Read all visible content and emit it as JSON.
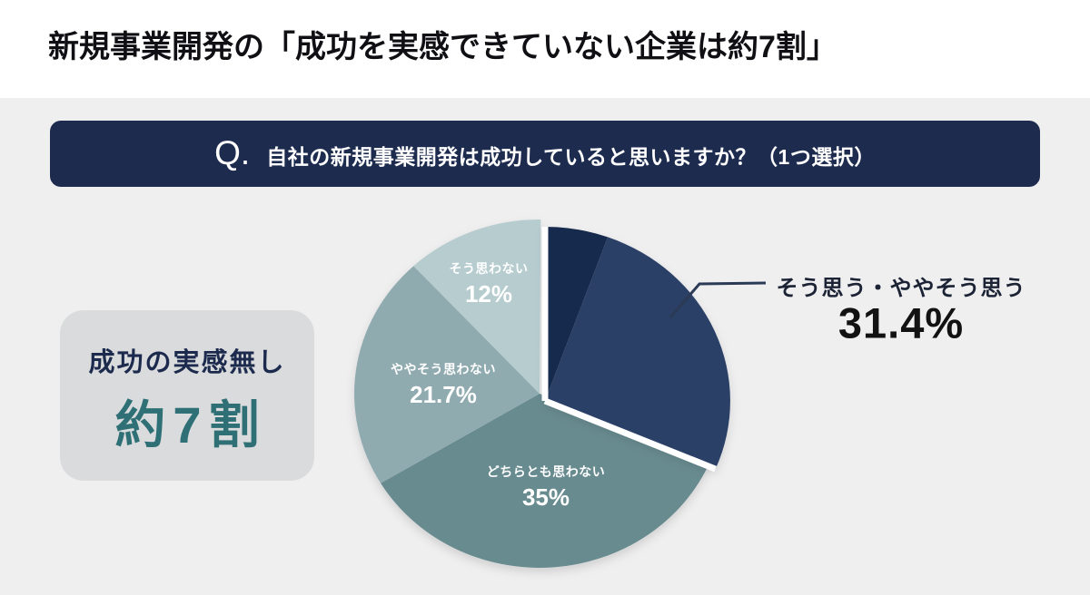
{
  "page": {
    "background": "#ffffff",
    "panel_background": "#efeff0"
  },
  "title": "新規事業開発の「成功を実感できていない企業は約7割」",
  "question": {
    "q_label": "Q.",
    "text": "自社の新規事業開発は成功していると思いますか？（1つ選択）",
    "background": "#1d2b4e",
    "text_color": "#ffffff"
  },
  "summary_box": {
    "label": "成功の実感無し",
    "value": "約7割",
    "label_color": "#1c2a4e",
    "value_color": "#2e7076",
    "background": "#dadbdc"
  },
  "callout": {
    "label": "そう思う・ややそう思う",
    "value": "31.4%",
    "line_color": "#2b3a55"
  },
  "chart_data": {
    "type": "pie",
    "start_angle_deg": 0,
    "direction": "clockwise",
    "slices": [
      {
        "label": "そう思う・ややそう思う",
        "value": 31.4,
        "display": "31.4%",
        "exploded": true,
        "label_placement": "callout",
        "segments": [
          {
            "name": "そう思う",
            "value": 5.5,
            "color": "#19294d"
          },
          {
            "name": "ややそう思う",
            "value": 25.9,
            "color": "#2b4066"
          }
        ]
      },
      {
        "label": "どちらとも思わない",
        "value": 35,
        "display": "35%",
        "color": "#688b90",
        "label_placement": "inside"
      },
      {
        "label": "ややそう思わない",
        "value": 21.7,
        "display": "21.7%",
        "color": "#90abb0",
        "label_placement": "inside"
      },
      {
        "label": "そう思わない",
        "value": 12,
        "display": "12%",
        "color": "#b6cccf",
        "label_placement": "inside"
      }
    ]
  }
}
